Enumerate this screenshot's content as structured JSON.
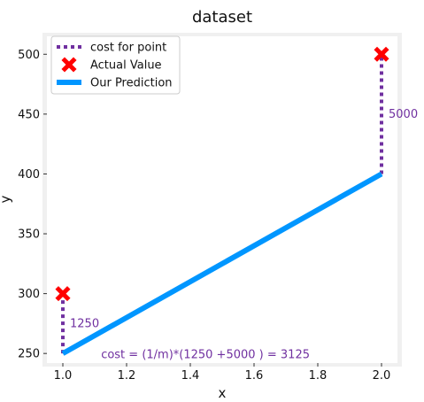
{
  "chart_data": {
    "type": "line",
    "title": "dataset",
    "xlabel": "x",
    "ylabel": "y",
    "xlim": [
      0.95,
      2.05
    ],
    "ylim": [
      242,
      515
    ],
    "xticks": [
      1.0,
      1.2,
      1.4,
      1.6,
      1.8,
      2.0
    ],
    "xtick_labels": [
      "1.0",
      "1.2",
      "1.4",
      "1.6",
      "1.8",
      "2.0"
    ],
    "yticks": [
      250,
      300,
      350,
      400,
      450,
      500
    ],
    "ytick_labels": [
      "250",
      "300",
      "350",
      "400",
      "450",
      "500"
    ],
    "grid": false,
    "legend_position": "upper-left",
    "legend": [
      {
        "label": "cost for point",
        "marker": "dotted-line",
        "color": "#7030A0"
      },
      {
        "label": "Actual Value",
        "marker": "x",
        "color": "#FF0000"
      },
      {
        "label": "Our Prediction",
        "marker": "line",
        "color": "#0096FF"
      }
    ],
    "series": [
      {
        "name": "Our Prediction",
        "type": "line",
        "color": "#0096FF",
        "x": [
          1.0,
          2.0
        ],
        "y": [
          250,
          400
        ]
      },
      {
        "name": "Actual Value",
        "type": "scatter",
        "color": "#FF0000",
        "x": [
          1.0,
          2.0
        ],
        "y": [
          300,
          500
        ]
      },
      {
        "name": "cost for point",
        "type": "segments",
        "color": "#7030A0",
        "segments": [
          {
            "x": 1.0,
            "y_from": 250,
            "y_to": 300,
            "label": "1250"
          },
          {
            "x": 2.0,
            "y_from": 400,
            "y_to": 500,
            "label": "5000"
          }
        ]
      }
    ],
    "annotations": [
      {
        "text": "cost = (1/m)*(1250 +5000 ) = 3125",
        "x": 1.12,
        "y": 246
      }
    ]
  }
}
